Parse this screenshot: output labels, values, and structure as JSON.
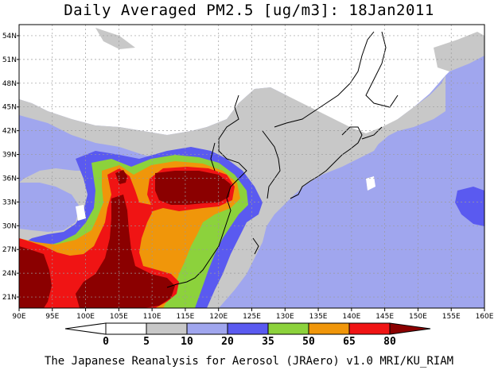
{
  "title": "Daily Averaged PM2.5 [ug/m3]: 18Jan2011",
  "credit": "The Japanese Reanalysis for Aerosol (JRAero) v1.0 MRI/KU_RIAM",
  "map": {
    "lon_labels": [
      "90E",
      "95E",
      "100E",
      "105E",
      "110E",
      "115E",
      "120E",
      "125E",
      "130E",
      "135E",
      "140E",
      "145E",
      "150E",
      "155E",
      "160E"
    ],
    "lat_labels": [
      "54N",
      "51N",
      "48N",
      "45N",
      "42N",
      "39N",
      "36N",
      "33N",
      "30N",
      "27N",
      "24N",
      "21N"
    ],
    "lon_range": [
      90,
      160
    ],
    "lat_range": [
      19.6,
      55.4
    ],
    "gridlines": true
  },
  "colorbar": {
    "ticks": [
      "0",
      "5",
      "10",
      "20",
      "35",
      "50",
      "65",
      "80"
    ],
    "colors": [
      "#ffffff",
      "#c8c8c8",
      "#a0a6ee",
      "#5a5af0",
      "#8cd23c",
      "#f0960a",
      "#f01414",
      "#8b0000"
    ]
  }
}
